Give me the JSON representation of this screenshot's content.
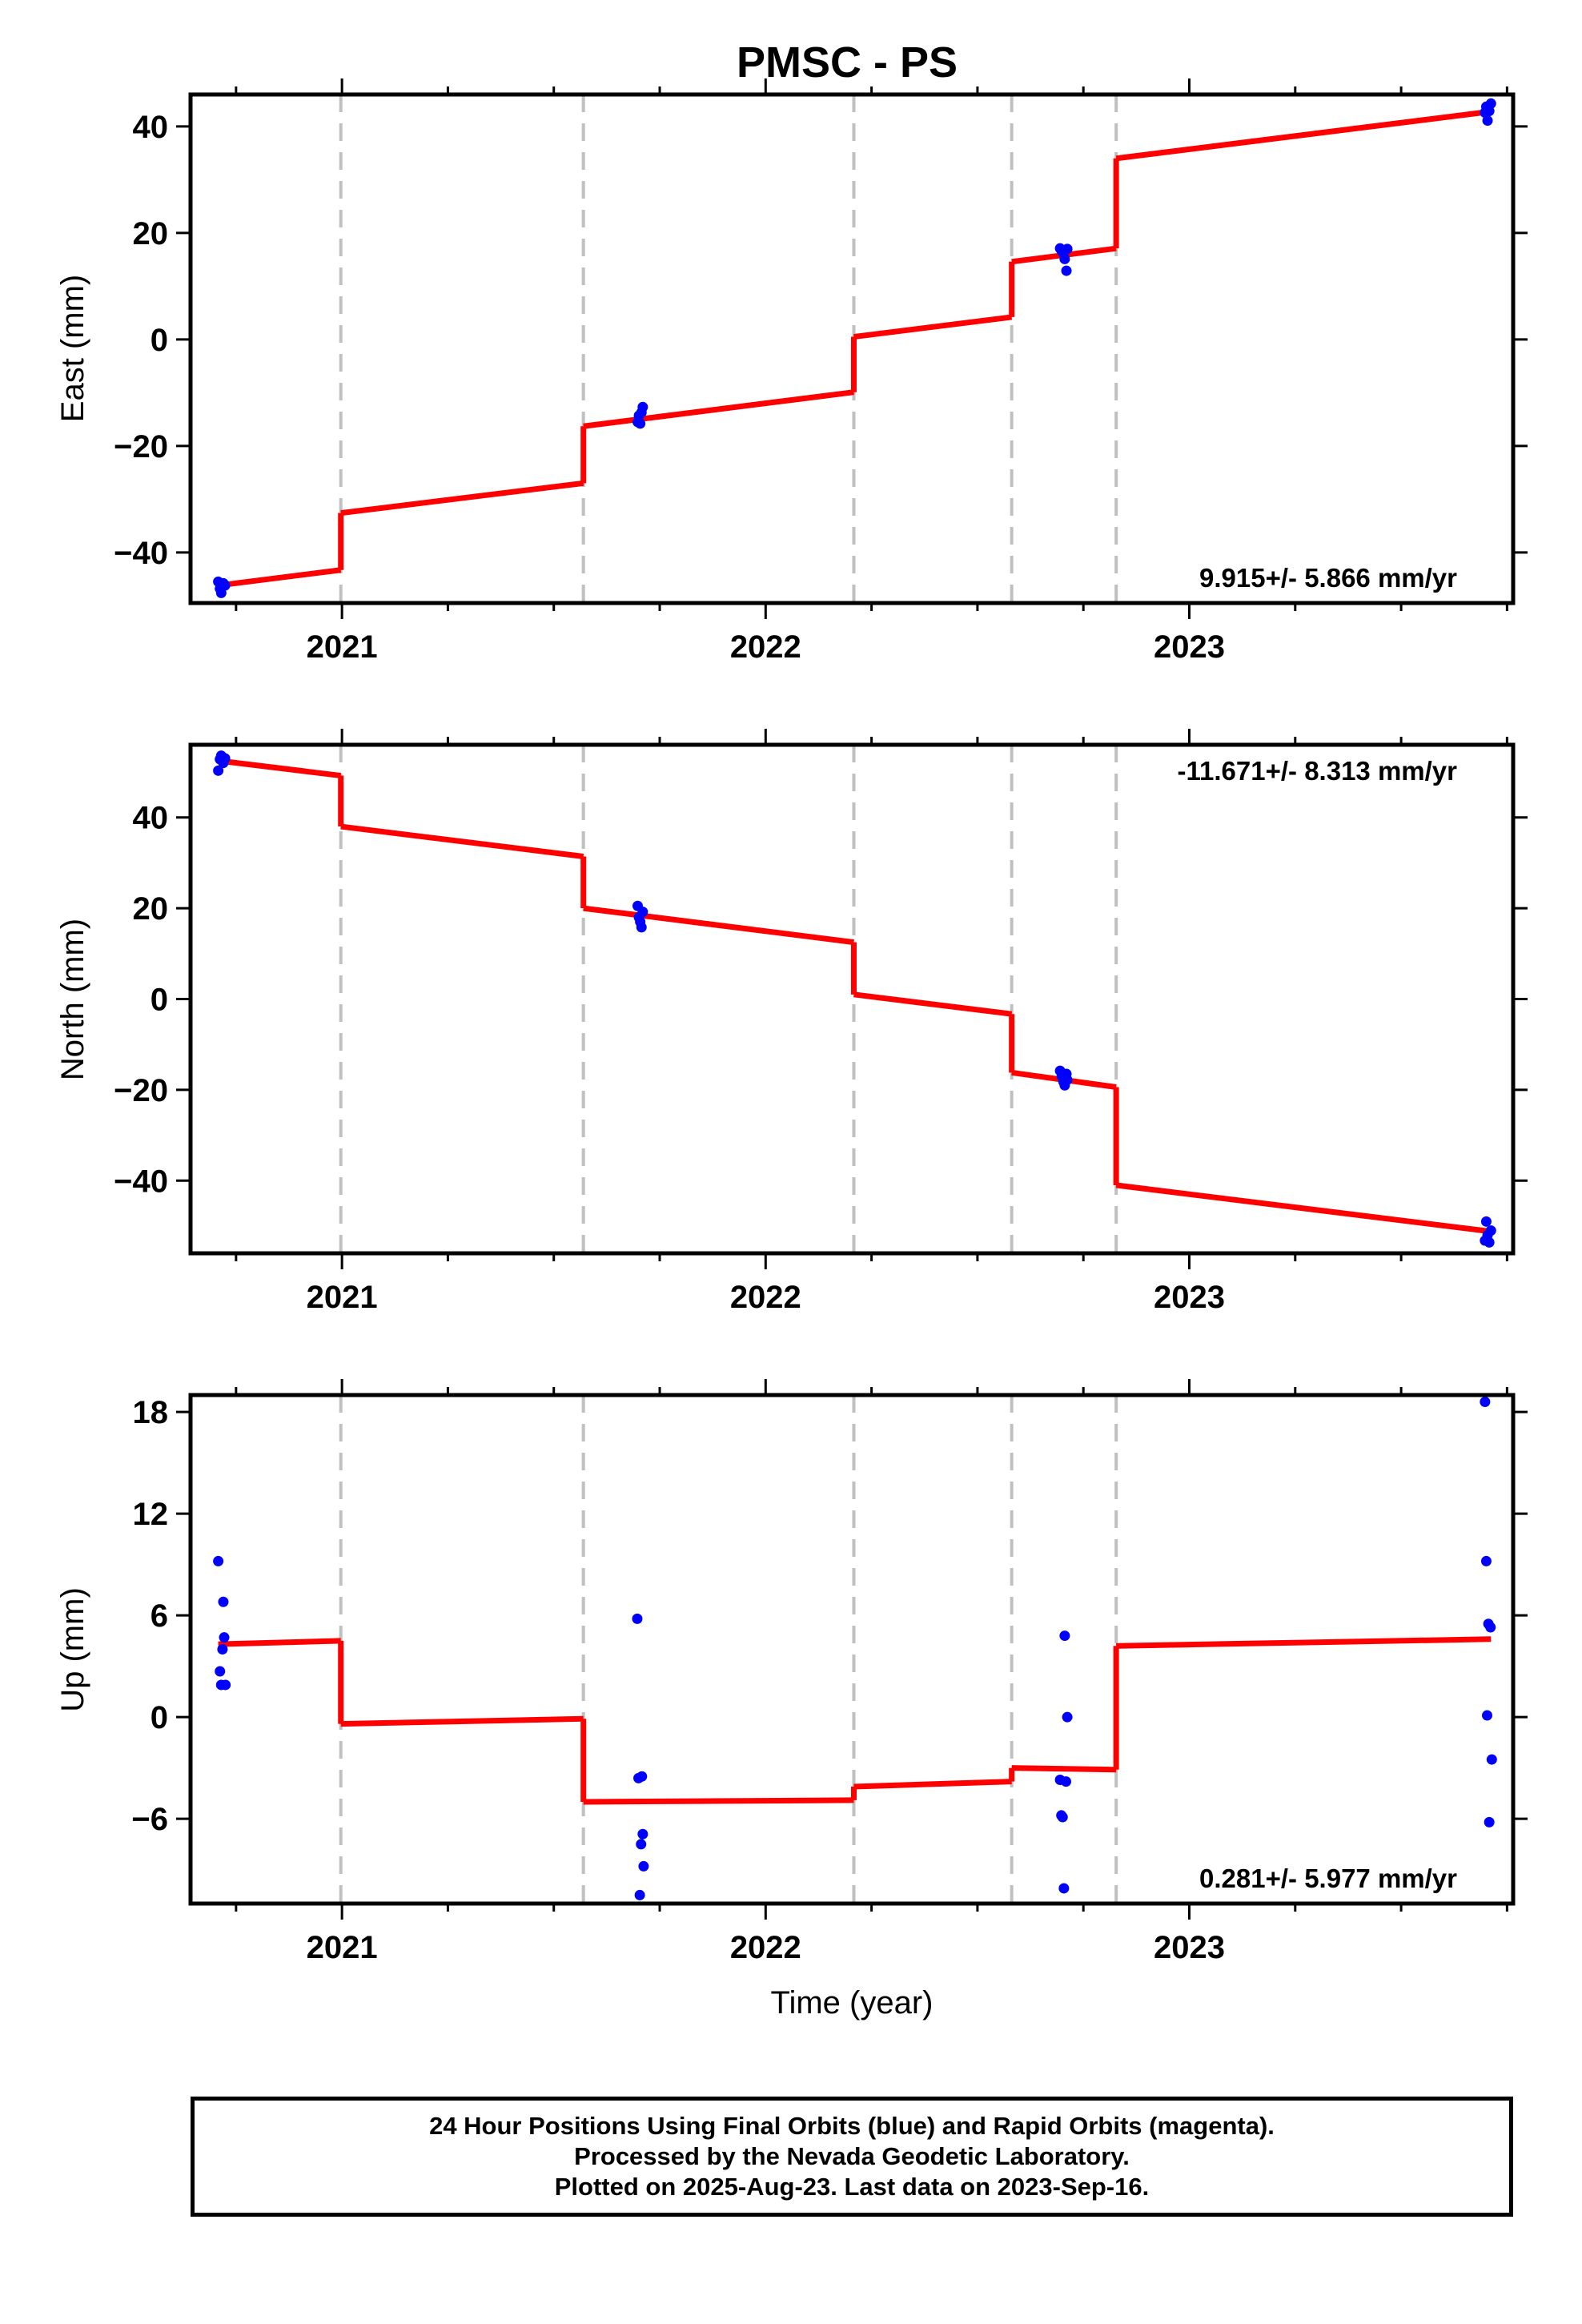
{
  "title": "PMSC - PS",
  "xlabel": "Time (year)",
  "x_ticks": [
    2021,
    2022,
    2023
  ],
  "xlim": [
    2020.6426,
    2023.7644
  ],
  "offset_epochs": [
    2020.9973,
    2021.5699,
    2022.2082,
    2022.5808,
    2022.8274
  ],
  "colors": {
    "model": "#ff0000",
    "final_orbits": "#0000ff",
    "rapid_orbits": "#ff00ff",
    "offset_lines": "#c0c0c0",
    "frame": "#000000"
  },
  "caption": {
    "line1": "24 Hour Positions Using Final Orbits (blue) and Rapid Orbits (magenta).",
    "line2": "Processed by the Nevada Geodetic Laboratory.",
    "line3": "Plotted on 2025-Aug-23. Last data on 2023-Sep-16."
  },
  "chart_data": [
    {
      "type": "scatter",
      "name": "east",
      "ylabel": "East (mm)",
      "ylim": [
        -49.5,
        46
      ],
      "y_ticks": [
        -40,
        -20,
        0,
        20,
        40
      ],
      "rate_text": "9.915+/- 5.866 mm/yr",
      "rate_position": "bottom-right",
      "points": [
        {
          "x": 2020.708,
          "y": -45.5
        },
        {
          "x": 2020.712,
          "y": -46.8
        },
        {
          "x": 2020.715,
          "y": -47.6
        },
        {
          "x": 2020.72,
          "y": -45.8
        },
        {
          "x": 2020.724,
          "y": -46.2
        },
        {
          "x": 2021.698,
          "y": -15.5
        },
        {
          "x": 2021.701,
          "y": -14.3
        },
        {
          "x": 2021.704,
          "y": -15.8
        },
        {
          "x": 2021.707,
          "y": -13.7
        },
        {
          "x": 2021.71,
          "y": -12.7
        },
        {
          "x": 2022.695,
          "y": 17.1
        },
        {
          "x": 2022.699,
          "y": 16.6
        },
        {
          "x": 2022.703,
          "y": 16.1
        },
        {
          "x": 2022.706,
          "y": 15.1
        },
        {
          "x": 2022.71,
          "y": 12.9
        },
        {
          "x": 2022.712,
          "y": 17.0
        },
        {
          "x": 2023.698,
          "y": 42.6
        },
        {
          "x": 2023.701,
          "y": 43.7
        },
        {
          "x": 2023.704,
          "y": 41.1
        },
        {
          "x": 2023.708,
          "y": 42.9
        },
        {
          "x": 2023.712,
          "y": 44.3
        }
      ],
      "model_segments": [
        {
          "x": [
            2020.708,
            2020.9973
          ],
          "y": [
            -46.2,
            -43.3
          ]
        },
        {
          "x": [
            2020.9973,
            2021.5699
          ],
          "y": [
            -32.6,
            -27.0
          ]
        },
        {
          "x": [
            2021.5699,
            2022.2082
          ],
          "y": [
            -16.3,
            -9.9
          ]
        },
        {
          "x": [
            2022.2082,
            2022.5808
          ],
          "y": [
            0.5,
            4.2
          ]
        },
        {
          "x": [
            2022.5808,
            2022.8274
          ],
          "y": [
            14.6,
            17.1
          ]
        },
        {
          "x": [
            2022.8274,
            2023.712
          ],
          "y": [
            34.0,
            42.8
          ]
        }
      ]
    },
    {
      "type": "scatter",
      "name": "north",
      "ylabel": "North (mm)",
      "ylim": [
        -56,
        56
      ],
      "y_ticks": [
        -40,
        -20,
        0,
        20,
        40
      ],
      "rate_text": "-11.671+/- 8.313 mm/yr",
      "rate_position": "top-right",
      "points": [
        {
          "x": 2020.708,
          "y": 50.3
        },
        {
          "x": 2020.712,
          "y": 52.8
        },
        {
          "x": 2020.715,
          "y": 53.6
        },
        {
          "x": 2020.72,
          "y": 52.0
        },
        {
          "x": 2020.724,
          "y": 53.0
        },
        {
          "x": 2021.698,
          "y": 20.5
        },
        {
          "x": 2021.701,
          "y": 18.0
        },
        {
          "x": 2021.704,
          "y": 17.0
        },
        {
          "x": 2021.707,
          "y": 15.8
        },
        {
          "x": 2021.71,
          "y": 19.2
        },
        {
          "x": 2022.695,
          "y": -15.8
        },
        {
          "x": 2022.699,
          "y": -17.0
        },
        {
          "x": 2022.703,
          "y": -18.2
        },
        {
          "x": 2022.706,
          "y": -19.0
        },
        {
          "x": 2022.71,
          "y": -16.5
        },
        {
          "x": 2022.712,
          "y": -17.8
        },
        {
          "x": 2023.698,
          "y": -53.2
        },
        {
          "x": 2023.701,
          "y": -49.0
        },
        {
          "x": 2023.704,
          "y": -52.0
        },
        {
          "x": 2023.708,
          "y": -53.6
        },
        {
          "x": 2023.712,
          "y": -51.0
        }
      ],
      "model_segments": [
        {
          "x": [
            2020.708,
            2020.9973
          ],
          "y": [
            52.5,
            49.2
          ]
        },
        {
          "x": [
            2020.9973,
            2021.5699
          ],
          "y": [
            38.0,
            31.4
          ]
        },
        {
          "x": [
            2021.5699,
            2022.2082
          ],
          "y": [
            20.0,
            12.5
          ]
        },
        {
          "x": [
            2022.2082,
            2022.5808
          ],
          "y": [
            1.0,
            -3.3
          ]
        },
        {
          "x": [
            2022.5808,
            2022.8274
          ],
          "y": [
            -16.2,
            -19.4
          ]
        },
        {
          "x": [
            2022.8274,
            2023.712
          ],
          "y": [
            -41.0,
            -51.2
          ]
        }
      ]
    },
    {
      "type": "scatter",
      "name": "up",
      "ylabel": "Up (mm)",
      "ylim": [
        -11,
        19
      ],
      "y_ticks": [
        -6,
        0,
        6,
        12,
        18
      ],
      "rate_text": "0.281+/- 5.977 mm/yr",
      "rate_position": "bottom-right",
      "points": [
        {
          "x": 2020.708,
          "y": 9.2
        },
        {
          "x": 2020.712,
          "y": 2.7
        },
        {
          "x": 2020.715,
          "y": 1.9
        },
        {
          "x": 2020.718,
          "y": 4.0
        },
        {
          "x": 2020.72,
          "y": 6.8
        },
        {
          "x": 2020.722,
          "y": 4.7
        },
        {
          "x": 2020.725,
          "y": 1.9
        },
        {
          "x": 2021.697,
          "y": 5.8
        },
        {
          "x": 2021.7,
          "y": -3.6
        },
        {
          "x": 2021.703,
          "y": -10.5
        },
        {
          "x": 2021.706,
          "y": -7.5
        },
        {
          "x": 2021.708,
          "y": -3.5
        },
        {
          "x": 2021.71,
          "y": -6.9
        },
        {
          "x": 2021.712,
          "y": -8.8
        },
        {
          "x": 2022.695,
          "y": -3.7
        },
        {
          "x": 2022.698,
          "y": -5.8
        },
        {
          "x": 2022.701,
          "y": -5.9
        },
        {
          "x": 2022.704,
          "y": -10.1
        },
        {
          "x": 2022.706,
          "y": 4.8
        },
        {
          "x": 2022.709,
          "y": -3.8
        },
        {
          "x": 2022.712,
          "y": 0.0
        },
        {
          "x": 2023.698,
          "y": 18.6
        },
        {
          "x": 2023.701,
          "y": 9.2
        },
        {
          "x": 2023.703,
          "y": 0.1
        },
        {
          "x": 2023.706,
          "y": 5.5
        },
        {
          "x": 2023.708,
          "y": -6.2
        },
        {
          "x": 2023.711,
          "y": 5.3
        },
        {
          "x": 2023.714,
          "y": -2.5
        }
      ],
      "model_segments": [
        {
          "x": [
            2020.708,
            2020.9973
          ],
          "y": [
            4.3,
            4.5
          ]
        },
        {
          "x": [
            2020.9973,
            2021.5699
          ],
          "y": [
            -0.4,
            -0.1
          ]
        },
        {
          "x": [
            2021.5699,
            2022.2082
          ],
          "y": [
            -5.0,
            -4.9
          ]
        },
        {
          "x": [
            2022.2082,
            2022.5808
          ],
          "y": [
            -4.1,
            -3.8
          ]
        },
        {
          "x": [
            2022.5808,
            2022.8274
          ],
          "y": [
            -3.0,
            -3.1
          ]
        },
        {
          "x": [
            2022.8274,
            2023.712
          ],
          "y": [
            4.2,
            4.6
          ]
        }
      ]
    }
  ]
}
